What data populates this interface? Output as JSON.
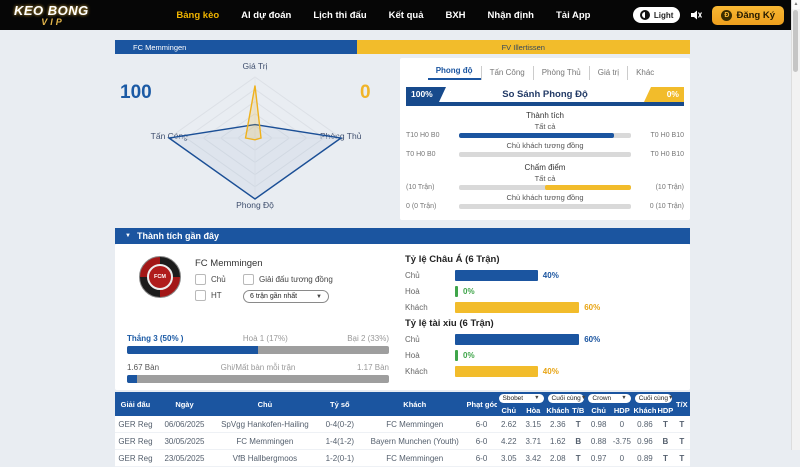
{
  "colors": {
    "primary": "#1b55a0",
    "primary_dark": "#174a8c",
    "accent": "#f2bc2b",
    "accent_text": "#e8a413",
    "green": "#3fa54a",
    "track": "#d9d9d9",
    "nav_active": "#f0b400",
    "home_radar": "#1b4f96",
    "away_radar": "#efb11d"
  },
  "nav": {
    "logo_line1": "KEO BONG",
    "logo_line2": "VIP",
    "items": [
      {
        "label": "Bảng kèo",
        "active": true
      },
      {
        "label": "AI dự đoán",
        "active": false
      },
      {
        "label": "Lịch thi đấu",
        "active": false
      },
      {
        "label": "Kết quả",
        "active": false
      },
      {
        "label": "BXH",
        "active": false
      },
      {
        "label": "Nhận định",
        "active": false
      },
      {
        "label": "Tải App",
        "active": false
      }
    ],
    "light_label": "Light",
    "register_label": "Đăng Ký"
  },
  "match_header": {
    "home": "FC Memmingen",
    "away": "FV Illertissen",
    "home_split_pct": 42
  },
  "radar": {
    "home_score": "100",
    "away_score": "0",
    "axis_top": "Giá Trị",
    "axis_right": "Phòng Thủ",
    "axis_bottom": "Phong Độ",
    "axis_left": "Tấn Công"
  },
  "chart_data": {
    "type": "radar",
    "axes": [
      "Giá Trị",
      "Phòng Thủ",
      "Phong Độ",
      "Tấn Công"
    ],
    "max": 100,
    "series": [
      {
        "name": "FC Memmingen",
        "color": "#1b4f96",
        "values": [
          22,
          100,
          100,
          100
        ]
      },
      {
        "name": "FV Illertissen",
        "color": "#efb11d",
        "values": [
          86,
          7,
          3,
          11
        ]
      }
    ],
    "grid_levels": 5,
    "legend_home_score": 100,
    "legend_away_score": 0
  },
  "compare_panel": {
    "tabs": [
      {
        "label": "Phong độ",
        "active": true
      },
      {
        "label": "Tấn Công",
        "active": false
      },
      {
        "label": "Phòng Thủ",
        "active": false
      },
      {
        "label": "Giá trị",
        "active": false
      },
      {
        "label": "Khác",
        "active": false
      }
    ],
    "home_pct": "100%",
    "away_pct": "0%",
    "title": "So Sánh Phong Độ",
    "main_bar_home_pct": 100,
    "sections": [
      {
        "title": "Thành tích",
        "rows": [
          {
            "label": "Tất cả",
            "left": "T10 H0 B0",
            "right": "T0 H0 B10",
            "home_pct": 90,
            "away_pct": 0
          },
          {
            "label": "Chủ khách tương đồng",
            "left": "T0 H0 B0",
            "right": "T0 H0 B10",
            "home_pct": 0,
            "away_pct": 0
          }
        ]
      },
      {
        "title": "Chấm điểm",
        "rows": [
          {
            "label": "Tất cả",
            "left": "(10 Trận)",
            "right": "(10 Trận)",
            "home_pct": 0,
            "away_pct": 50
          },
          {
            "label": "Chủ khách tương đồng",
            "left": "0 (0 Trận)",
            "right": "0 (10 Trận)",
            "home_pct": 0,
            "away_pct": 0
          }
        ]
      }
    ]
  },
  "recent": {
    "title": "Thành tích gần đây",
    "team_name": "FC Memmingen",
    "team_logo_text": "FCM",
    "filter_chu": "Chủ",
    "filter_giai_dau": "Giải đấu tương đồng",
    "filter_ht": "HT",
    "range_select": "6 trận gần nhất",
    "win_label": "Thắng 3 (50% )",
    "draw_label": "Hoà 1 (17%)",
    "loss_label": "Bại 2 (33%)",
    "win_pct": 50,
    "goals_left": "1.67 Bàn",
    "goals_center": "Ghi/Mất bàn mỗi trận",
    "goals_right": "1.17 Bàn",
    "goals_home_pct": 4,
    "ratio_groups": [
      {
        "title": "Tỷ lệ Châu Á (6 Trận)",
        "rows": [
          {
            "label": "Chủ",
            "display": "40%",
            "value": 40,
            "color": "primary"
          },
          {
            "label": "Hoà",
            "display": "0%",
            "value": 0,
            "color": "green"
          },
          {
            "label": "Khách",
            "display": "60%",
            "value": 60,
            "color": "accent"
          }
        ]
      },
      {
        "title": "Tỷ lệ tài xỉu (6 Trận)",
        "rows": [
          {
            "label": "Chủ",
            "display": "60%",
            "value": 60,
            "color": "primary"
          },
          {
            "label": "Hoà",
            "display": "0%",
            "value": 0,
            "color": "green"
          },
          {
            "label": "Khách",
            "display": "40%",
            "value": 40,
            "color": "accent"
          }
        ]
      }
    ]
  },
  "table": {
    "main_headers": [
      "Giải đấu",
      "Ngày",
      "Chủ",
      "Tỷ số",
      "Khách",
      "Phạt góc"
    ],
    "odds_dropdowns": [
      "Sbobet",
      "Cuối cùng",
      "Crown",
      "Cuối cùng"
    ],
    "sub_headers": [
      "Chủ",
      "Hòa",
      "Khách",
      "T/B",
      "Chủ",
      "HDP",
      "Khách",
      "HDP"
    ],
    "tx_header": "T/X",
    "rows": [
      {
        "league": "GER Reg",
        "date": "06/06/2025",
        "home": "SpVgg Hankofen-Hailing",
        "home_link": false,
        "score": "0-4(0-2)",
        "away": "FC Memmingen",
        "away_link": true,
        "corners": "6-0",
        "odds": [
          "2.62",
          "3.15",
          "2.36"
        ],
        "tb": "T",
        "tb_color": "blue",
        "hdp": [
          "0.98",
          "0",
          "0.86"
        ],
        "hdp_res": "T",
        "hdp_color": "blue",
        "tx": "T"
      },
      {
        "league": "GER Reg",
        "date": "30/05/2025",
        "home": "FC Memmingen",
        "home_link": true,
        "score": "1-4(1-2)",
        "away": "Bayern Munchen (Youth)",
        "away_link": false,
        "corners": "6-0",
        "odds": [
          "4.22",
          "3.71",
          "1.62"
        ],
        "tb": "B",
        "tb_color": "yellow",
        "hdp": [
          "0.88",
          "-3.75",
          "0.96"
        ],
        "hdp_res": "B",
        "hdp_color": "yellow",
        "tx": "T"
      },
      {
        "league": "GER Reg",
        "date": "23/05/2025",
        "home": "VfB Hallbergmoos",
        "home_link": false,
        "score": "1-2(0-1)",
        "away": "FC Memmingen",
        "away_link": true,
        "corners": "6-0",
        "odds": [
          "3.05",
          "3.42",
          "2.08"
        ],
        "tb": "T",
        "tb_color": "blue",
        "hdp": [
          "0.97",
          "0",
          "0.89"
        ],
        "hdp_res": "T",
        "hdp_color": "blue",
        "tx": "T"
      }
    ]
  }
}
